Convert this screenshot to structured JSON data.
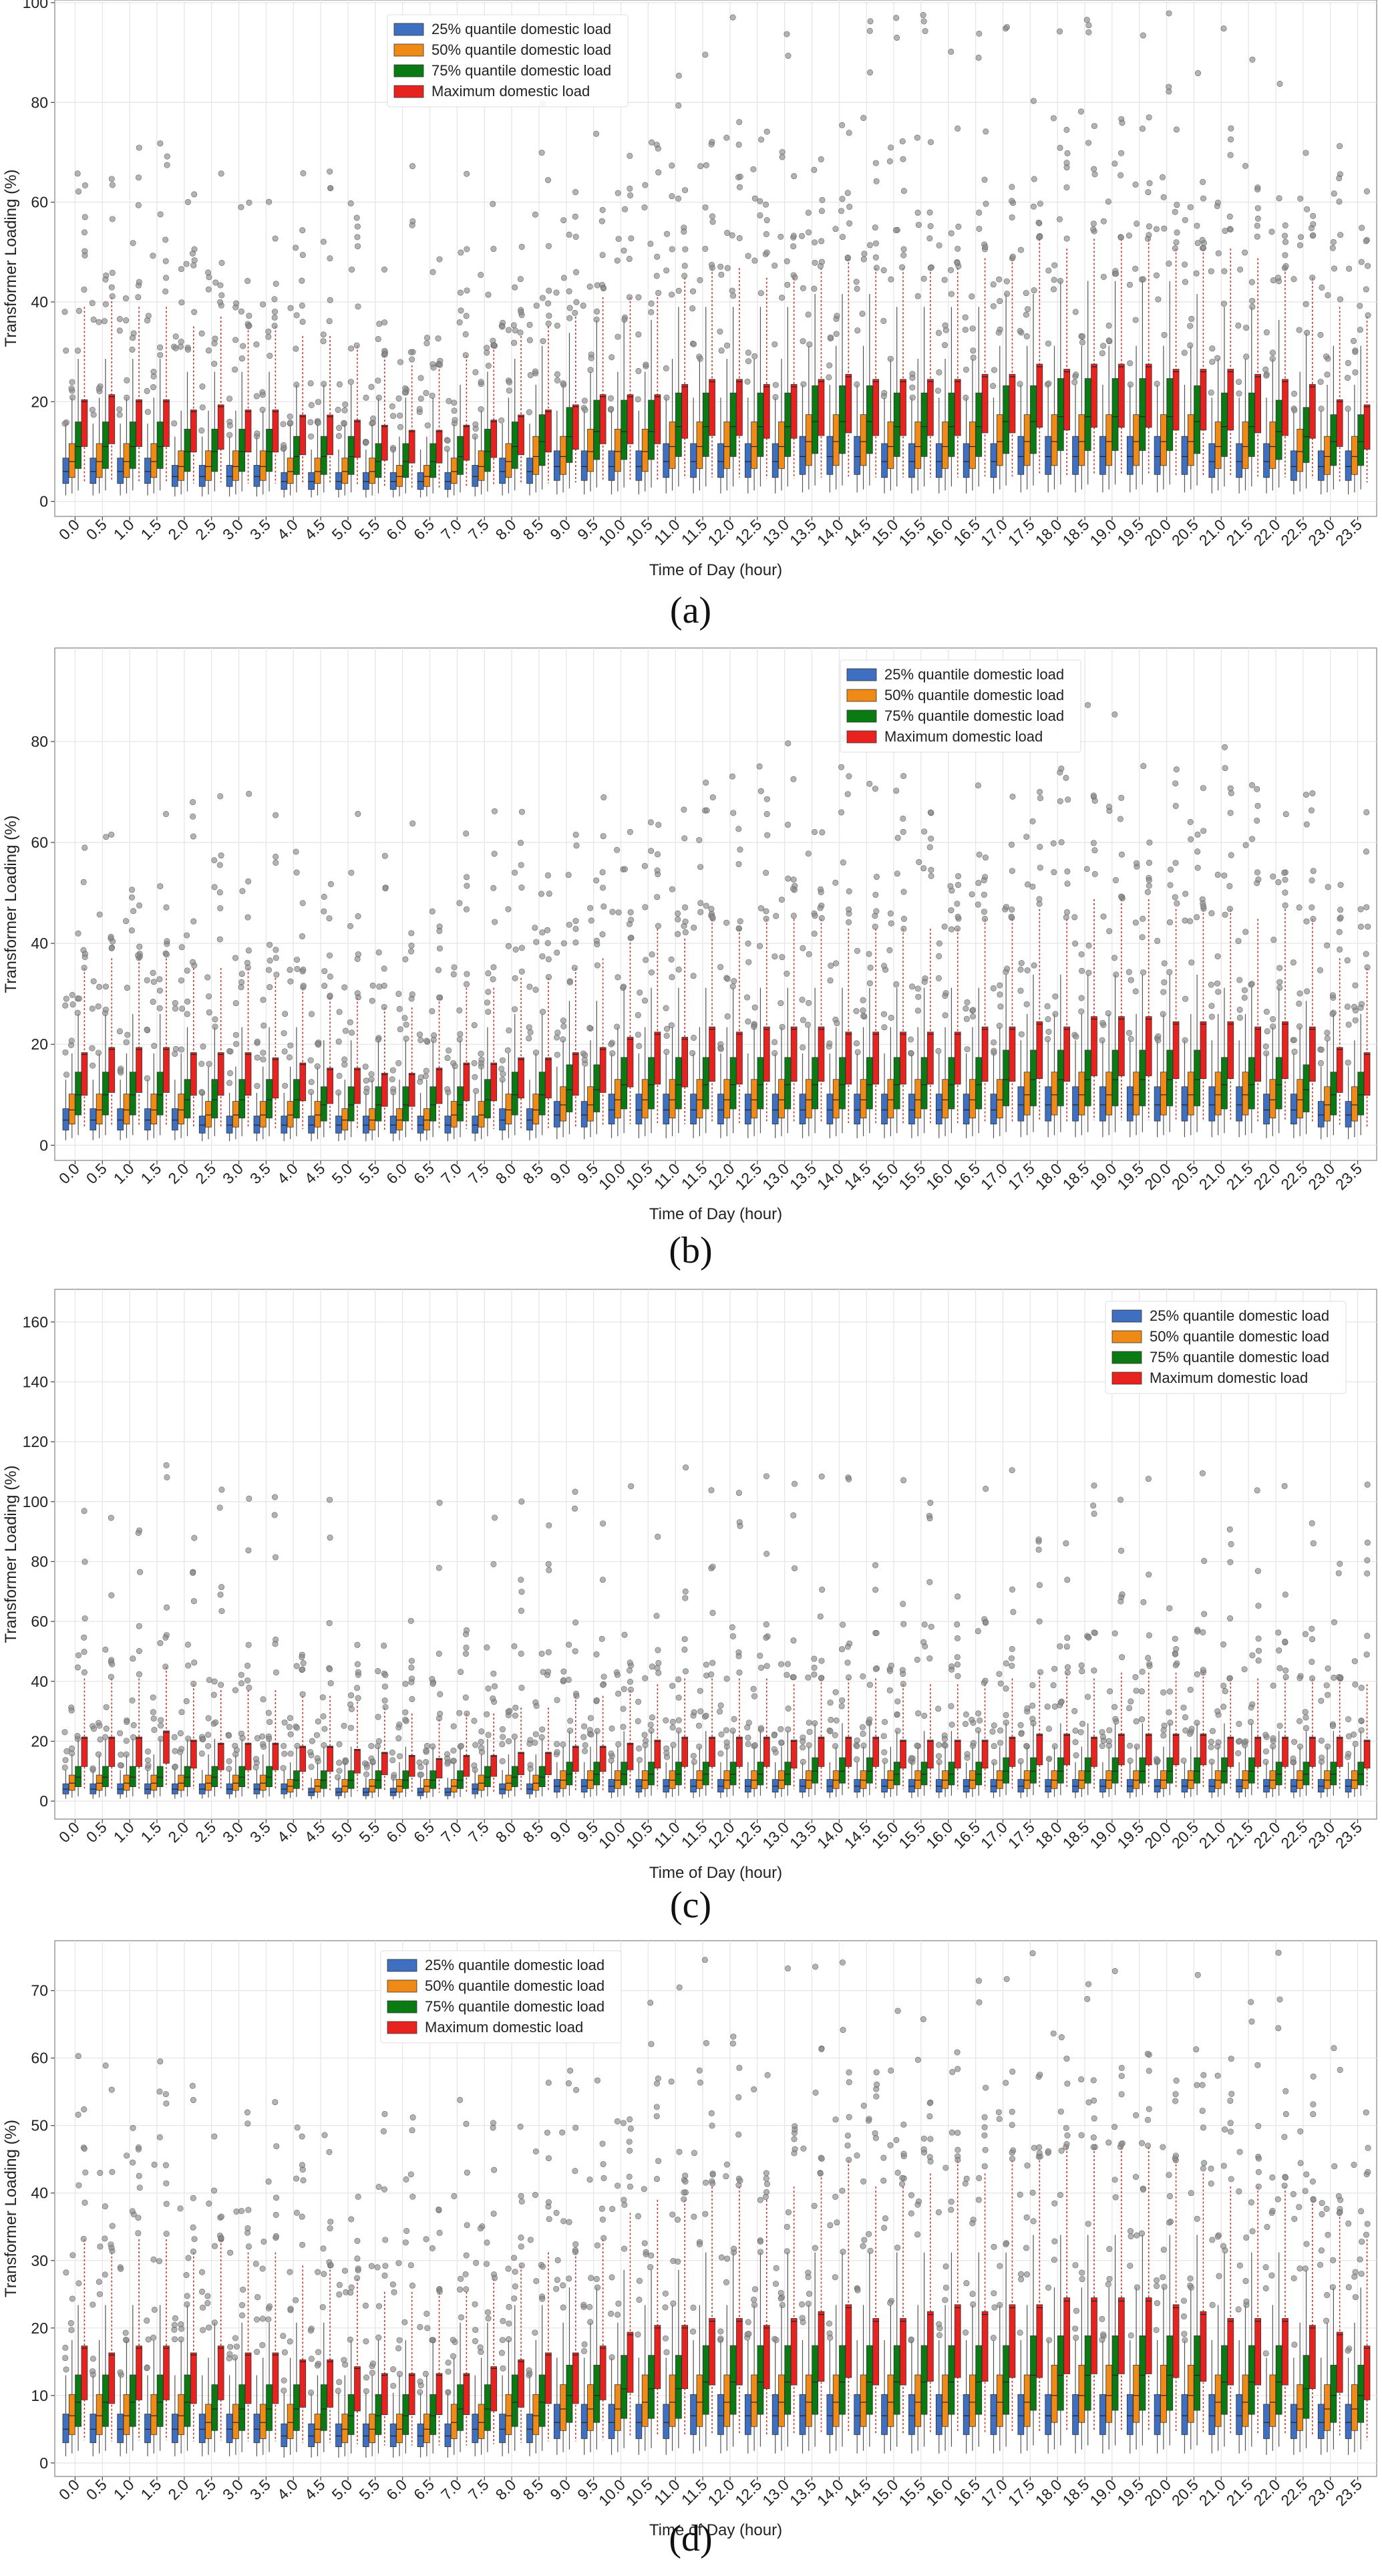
{
  "figure": {
    "panel_labels": [
      "(a)",
      "(b)",
      "(c)",
      "(d)"
    ],
    "colors": {
      "q25": "#3f6fc0",
      "q50": "#f08a16",
      "q75": "#0a7a12",
      "max": "#e8231f",
      "outlier": "#8a8a8a",
      "grid": "#e6e6e6",
      "axis": "#444444"
    }
  },
  "chart_data": [
    {
      "type": "box",
      "title": "",
      "panel": "(a)",
      "xlabel": "Time of Day (hour)",
      "ylabel": "Transformer Loading (%)",
      "ylim": [
        -3,
        100
      ],
      "yticks": [
        0,
        20,
        40,
        60,
        80,
        100
      ],
      "grid": true,
      "legend_position": "upper-center",
      "legend": [
        "25% quantile domestic load",
        "50% quantile domestic load",
        "75% quantile domestic load",
        "Maximum domestic load"
      ],
      "categories": [
        "0.0",
        "0.5",
        "1.0",
        "1.5",
        "2.0",
        "2.5",
        "3.0",
        "3.5",
        "4.0",
        "4.5",
        "5.0",
        "5.5",
        "6.0",
        "6.5",
        "7.0",
        "7.5",
        "8.0",
        "8.5",
        "9.0",
        "9.5",
        "10.0",
        "10.5",
        "11.0",
        "11.5",
        "12.0",
        "12.5",
        "13.0",
        "13.5",
        "14.0",
        "14.5",
        "15.0",
        "15.5",
        "16.0",
        "16.5",
        "17.0",
        "17.5",
        "18.0",
        "18.5",
        "19.0",
        "19.5",
        "20.0",
        "20.5",
        "21.0",
        "21.5",
        "22.0",
        "22.5",
        "23.0",
        "23.5"
      ],
      "series": [
        {
          "name": "25% quantile domestic load",
          "values": [
            6,
            6,
            6,
            6,
            5,
            5,
            5,
            5,
            4,
            4,
            4,
            4,
            4,
            4,
            4,
            5,
            6,
            6,
            7,
            7,
            7,
            7,
            8,
            8,
            8,
            8,
            8,
            9,
            9,
            9,
            8,
            8,
            8,
            8,
            8,
            9,
            9,
            9,
            9,
            9,
            9,
            9,
            8,
            8,
            8,
            7,
            7,
            7
          ]
        },
        {
          "name": "50% quantile domestic load",
          "values": [
            8,
            8,
            8,
            8,
            7,
            7,
            7,
            7,
            6,
            6,
            6,
            6,
            5,
            5,
            6,
            7,
            8,
            9,
            9,
            10,
            10,
            10,
            11,
            11,
            11,
            11,
            11,
            12,
            12,
            12,
            11,
            11,
            11,
            11,
            12,
            12,
            12,
            12,
            12,
            12,
            12,
            12,
            11,
            11,
            11,
            10,
            9,
            9
          ]
        },
        {
          "name": "75% quantile domestic load",
          "values": [
            11,
            11,
            11,
            11,
            10,
            10,
            10,
            10,
            9,
            9,
            9,
            8,
            8,
            8,
            9,
            10,
            11,
            12,
            13,
            14,
            14,
            14,
            15,
            15,
            15,
            15,
            15,
            16,
            16,
            16,
            15,
            15,
            15,
            15,
            16,
            16,
            17,
            17,
            17,
            17,
            17,
            16,
            15,
            15,
            14,
            13,
            12,
            12
          ]
        },
        {
          "name": "Maximum domestic load",
          "values": [
            20,
            21,
            20,
            20,
            18,
            19,
            18,
            18,
            17,
            17,
            16,
            15,
            14,
            14,
            15,
            16,
            17,
            18,
            19,
            21,
            21,
            21,
            23,
            24,
            24,
            23,
            23,
            24,
            25,
            24,
            24,
            24,
            24,
            25,
            25,
            27,
            26,
            27,
            27,
            27,
            26,
            26,
            26,
            25,
            24,
            23,
            20,
            19
          ]
        }
      ]
    },
    {
      "type": "box",
      "title": "",
      "panel": "(b)",
      "xlabel": "Time of Day (hour)",
      "ylabel": "Transformer Loading (%)",
      "ylim": [
        -3,
        98
      ],
      "yticks": [
        0,
        20,
        40,
        60,
        80
      ],
      "grid": true,
      "legend_position": "upper-center",
      "legend": [
        "25% quantile domestic load",
        "50% quantile domestic load",
        "75% quantile domestic load",
        "Maximum domestic load"
      ],
      "categories": [
        "0.0",
        "0.5",
        "1.0",
        "1.5",
        "2.0",
        "2.5",
        "3.0",
        "3.5",
        "4.0",
        "4.5",
        "5.0",
        "5.5",
        "6.0",
        "6.5",
        "7.0",
        "7.5",
        "8.0",
        "8.5",
        "9.0",
        "9.5",
        "10.0",
        "10.5",
        "11.0",
        "11.5",
        "12.0",
        "12.5",
        "13.0",
        "13.5",
        "14.0",
        "14.5",
        "15.0",
        "15.5",
        "16.0",
        "16.5",
        "17.0",
        "17.5",
        "18.0",
        "18.5",
        "19.0",
        "19.5",
        "20.0",
        "20.5",
        "21.0",
        "21.5",
        "22.0",
        "22.5",
        "23.0",
        "23.5"
      ],
      "series": [
        {
          "name": "25% quantile domestic load",
          "values": [
            5,
            5,
            5,
            5,
            5,
            4,
            4,
            4,
            4,
            4,
            4,
            4,
            4,
            4,
            4,
            4,
            5,
            5,
            6,
            6,
            7,
            7,
            7,
            7,
            7,
            7,
            7,
            7,
            7,
            7,
            7,
            7,
            7,
            7,
            7,
            8,
            8,
            8,
            8,
            8,
            8,
            8,
            8,
            8,
            7,
            7,
            6,
            6
          ]
        },
        {
          "name": "50% quantile domestic load",
          "values": [
            7,
            7,
            7,
            7,
            7,
            6,
            6,
            6,
            6,
            6,
            5,
            5,
            5,
            5,
            6,
            6,
            7,
            7,
            8,
            8,
            9,
            9,
            9,
            9,
            9,
            9,
            9,
            9,
            9,
            9,
            9,
            9,
            9,
            9,
            9,
            10,
            10,
            10,
            10,
            10,
            10,
            10,
            10,
            10,
            9,
            9,
            8,
            8
          ]
        },
        {
          "name": "75% quantile domestic load",
          "values": [
            10,
            10,
            10,
            10,
            9,
            9,
            9,
            9,
            9,
            8,
            8,
            8,
            8,
            8,
            8,
            9,
            10,
            10,
            11,
            11,
            12,
            12,
            12,
            12,
            12,
            12,
            12,
            12,
            12,
            12,
            12,
            12,
            12,
            12,
            13,
            13,
            13,
            13,
            13,
            13,
            13,
            13,
            12,
            12,
            12,
            11,
            10,
            10
          ]
        },
        {
          "name": "Maximum domestic load",
          "values": [
            18,
            19,
            19,
            19,
            18,
            18,
            18,
            17,
            16,
            15,
            15,
            14,
            14,
            15,
            16,
            16,
            17,
            17,
            18,
            19,
            21,
            22,
            21,
            23,
            22,
            23,
            23,
            23,
            22,
            22,
            22,
            22,
            22,
            23,
            23,
            24,
            23,
            25,
            25,
            25,
            24,
            24,
            24,
            23,
            24,
            23,
            19,
            18
          ]
        }
      ]
    },
    {
      "type": "box",
      "title": "",
      "panel": "(c)",
      "xlabel": "Time of Day (hour)",
      "ylabel": "Transformer Loading (%)",
      "ylim": [
        -6,
        170
      ],
      "yticks": [
        0,
        20,
        40,
        60,
        80,
        100,
        120,
        140,
        160
      ],
      "grid": true,
      "legend_position": "upper-right",
      "legend": [
        "25% quantile domestic load",
        "50% quantile domestic load",
        "75% quantile domestic load",
        "Maximum domestic load"
      ],
      "categories": [
        "0.0",
        "0.5",
        "1.0",
        "1.5",
        "2.0",
        "2.5",
        "3.0",
        "3.5",
        "4.0",
        "4.5",
        "5.0",
        "5.5",
        "6.0",
        "6.5",
        "7.0",
        "7.5",
        "8.0",
        "8.5",
        "9.0",
        "9.5",
        "10.0",
        "10.5",
        "11.0",
        "11.5",
        "12.0",
        "12.5",
        "13.0",
        "13.5",
        "14.0",
        "14.5",
        "15.0",
        "15.5",
        "16.0",
        "16.5",
        "17.0",
        "17.5",
        "18.0",
        "18.5",
        "19.0",
        "19.5",
        "20.0",
        "20.5",
        "21.0",
        "21.5",
        "22.0",
        "22.5",
        "23.0",
        "23.5"
      ],
      "series": [
        {
          "name": "25% quantile domestic load",
          "values": [
            4,
            4,
            4,
            4,
            4,
            4,
            4,
            4,
            4,
            3,
            3,
            3,
            3,
            3,
            3,
            4,
            4,
            4,
            5,
            5,
            5,
            5,
            5,
            5,
            5,
            5,
            5,
            5,
            5,
            5,
            5,
            5,
            5,
            5,
            5,
            5,
            5,
            5,
            5,
            5,
            5,
            5,
            5,
            5,
            5,
            5,
            5,
            5
          ]
        },
        {
          "name": "50% quantile domestic load",
          "values": [
            6,
            6,
            6,
            6,
            6,
            6,
            6,
            6,
            5,
            5,
            5,
            5,
            5,
            5,
            5,
            6,
            6,
            6,
            7,
            7,
            7,
            7,
            7,
            7,
            7,
            7,
            7,
            7,
            7,
            7,
            7,
            7,
            7,
            7,
            7,
            7,
            7,
            7,
            7,
            7,
            7,
            7,
            7,
            7,
            7,
            7,
            7,
            7
          ]
        },
        {
          "name": "75% quantile domestic load",
          "values": [
            8,
            8,
            8,
            8,
            8,
            8,
            8,
            8,
            7,
            7,
            7,
            7,
            7,
            7,
            7,
            8,
            8,
            8,
            9,
            9,
            9,
            9,
            9,
            9,
            9,
            9,
            9,
            10,
            10,
            10,
            9,
            9,
            9,
            9,
            10,
            10,
            10,
            10,
            10,
            10,
            10,
            10,
            10,
            10,
            9,
            9,
            9,
            9
          ]
        },
        {
          "name": "Maximum domestic load",
          "values": [
            21,
            21,
            21,
            23,
            20,
            19,
            19,
            19,
            18,
            18,
            17,
            16,
            15,
            14,
            15,
            15,
            16,
            16,
            18,
            18,
            19,
            20,
            21,
            21,
            21,
            21,
            20,
            21,
            21,
            21,
            20,
            20,
            20,
            20,
            21,
            22,
            22,
            21,
            22,
            22,
            22,
            22,
            21,
            21,
            21,
            21,
            21,
            20
          ]
        }
      ]
    },
    {
      "type": "box",
      "title": "",
      "panel": "(d)",
      "xlabel": "Time of Day (hour)",
      "ylabel": "Transformer Loading (%)",
      "ylim": [
        -2,
        77
      ],
      "yticks": [
        0,
        10,
        20,
        30,
        40,
        50,
        60,
        70
      ],
      "grid": true,
      "legend_position": "upper-center",
      "legend": [
        "25% quantile domestic load",
        "50% quantile domestic load",
        "75% quantile domestic load",
        "Maximum domestic load"
      ],
      "categories": [
        "0.0",
        "0.5",
        "1.0",
        "1.5",
        "2.0",
        "2.5",
        "3.0",
        "3.5",
        "4.0",
        "4.5",
        "5.0",
        "5.5",
        "6.0",
        "6.5",
        "7.0",
        "7.5",
        "8.0",
        "8.5",
        "9.0",
        "9.5",
        "10.0",
        "10.5",
        "11.0",
        "11.5",
        "12.0",
        "12.5",
        "13.0",
        "13.5",
        "14.0",
        "14.5",
        "15.0",
        "15.5",
        "16.0",
        "16.5",
        "17.0",
        "17.5",
        "18.0",
        "18.5",
        "19.0",
        "19.5",
        "20.0",
        "20.5",
        "21.0",
        "21.5",
        "22.0",
        "22.5",
        "23.0",
        "23.5"
      ],
      "series": [
        {
          "name": "25% quantile domestic load",
          "values": [
            5,
            5,
            5,
            5,
            5,
            5,
            5,
            5,
            4,
            4,
            4,
            4,
            4,
            4,
            4,
            5,
            5,
            5,
            6,
            6,
            6,
            6,
            6,
            7,
            7,
            7,
            7,
            7,
            7,
            7,
            7,
            7,
            7,
            7,
            7,
            7,
            7,
            7,
            7,
            7,
            7,
            7,
            7,
            7,
            6,
            6,
            6,
            6
          ]
        },
        {
          "name": "50% quantile domestic load",
          "values": [
            7,
            7,
            7,
            7,
            7,
            6,
            6,
            6,
            6,
            5,
            5,
            5,
            5,
            5,
            6,
            6,
            7,
            7,
            8,
            8,
            8,
            9,
            9,
            9,
            9,
            9,
            9,
            9,
            9,
            9,
            9,
            9,
            9,
            9,
            9,
            9,
            10,
            10,
            10,
            10,
            10,
            10,
            9,
            9,
            9,
            8,
            8,
            8
          ]
        },
        {
          "name": "75% quantile domestic load",
          "values": [
            9,
            9,
            9,
            9,
            9,
            8,
            8,
            8,
            8,
            8,
            7,
            7,
            7,
            7,
            8,
            8,
            9,
            9,
            10,
            10,
            11,
            11,
            11,
            12,
            12,
            12,
            12,
            12,
            12,
            12,
            12,
            12,
            12,
            12,
            12,
            13,
            13,
            13,
            13,
            13,
            13,
            13,
            12,
            12,
            12,
            11,
            10,
            10
          ]
        },
        {
          "name": "Maximum domestic load",
          "values": [
            17,
            16,
            17,
            17,
            16,
            17,
            16,
            16,
            15,
            15,
            14,
            13,
            13,
            13,
            13,
            14,
            15,
            16,
            16,
            17,
            19,
            20,
            20,
            21,
            21,
            20,
            21,
            22,
            23,
            21,
            21,
            22,
            23,
            22,
            23,
            23,
            24,
            24,
            24,
            24,
            23,
            22,
            21,
            21,
            21,
            20,
            19,
            17
          ]
        }
      ]
    }
  ]
}
